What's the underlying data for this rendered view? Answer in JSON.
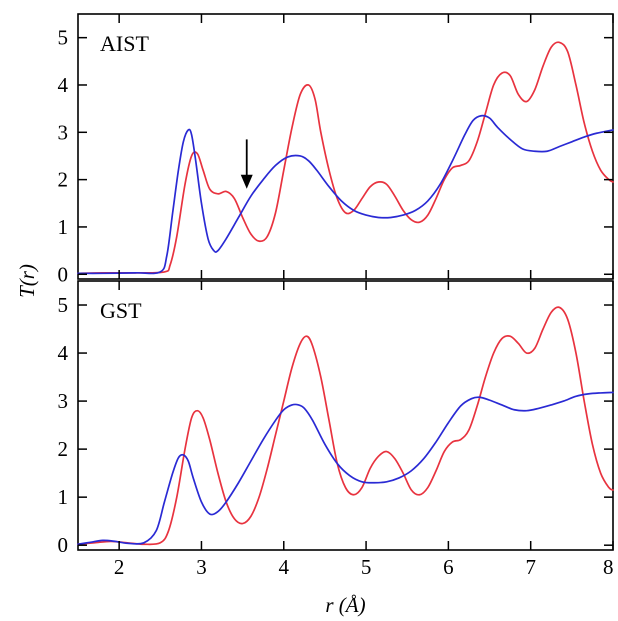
{
  "chart_data": [
    {
      "type": "line",
      "panel_label": "AIST",
      "xlabel": "",
      "ylabel": "T(r)",
      "xlim": [
        1.5,
        8
      ],
      "ylim": [
        -0.1,
        5.5
      ],
      "x_ticks": [
        2,
        3,
        4,
        5,
        6,
        7,
        8
      ],
      "y_ticks": [
        0,
        1,
        2,
        3,
        4,
        5
      ],
      "annotation": {
        "type": "arrow",
        "x": 3.55,
        "y_from": 2.85,
        "y_to": 1.85
      },
      "series": [
        {
          "color": "#e8333f",
          "x": [
            1.5,
            1.8,
            2.2,
            2.55,
            2.62,
            2.7,
            2.8,
            2.88,
            2.95,
            3.02,
            3.1,
            3.2,
            3.3,
            3.4,
            3.5,
            3.6,
            3.7,
            3.8,
            3.9,
            4.0,
            4.1,
            4.2,
            4.3,
            4.38,
            4.45,
            4.55,
            4.65,
            4.75,
            4.85,
            4.95,
            5.05,
            5.15,
            5.25,
            5.35,
            5.45,
            5.55,
            5.65,
            5.75,
            5.85,
            5.95,
            6.05,
            6.15,
            6.25,
            6.35,
            6.45,
            6.55,
            6.65,
            6.75,
            6.85,
            6.95,
            7.05,
            7.15,
            7.25,
            7.35,
            7.45,
            7.55,
            7.65,
            7.75,
            7.85,
            7.95,
            8.0
          ],
          "y": [
            0.02,
            0.03,
            0.03,
            0.05,
            0.2,
            0.8,
            1.9,
            2.5,
            2.55,
            2.2,
            1.8,
            1.7,
            1.75,
            1.6,
            1.2,
            0.85,
            0.7,
            0.8,
            1.3,
            2.2,
            3.1,
            3.8,
            4.0,
            3.7,
            3.0,
            2.2,
            1.6,
            1.3,
            1.35,
            1.6,
            1.85,
            1.95,
            1.9,
            1.65,
            1.35,
            1.15,
            1.1,
            1.25,
            1.6,
            2.0,
            2.25,
            2.3,
            2.4,
            2.8,
            3.4,
            4.0,
            4.25,
            4.2,
            3.8,
            3.65,
            3.9,
            4.4,
            4.8,
            4.9,
            4.7,
            4.0,
            3.2,
            2.6,
            2.2,
            2.0,
            1.95
          ]
        },
        {
          "color": "#2a2ad4",
          "x": [
            1.5,
            1.8,
            2.2,
            2.5,
            2.58,
            2.65,
            2.72,
            2.78,
            2.84,
            2.88,
            2.93,
            3.0,
            3.08,
            3.15,
            3.2,
            3.3,
            3.45,
            3.6,
            3.75,
            3.9,
            4.05,
            4.2,
            4.3,
            4.4,
            4.55,
            4.7,
            4.85,
            5.0,
            5.15,
            5.3,
            5.45,
            5.6,
            5.75,
            5.9,
            6.05,
            6.2,
            6.3,
            6.4,
            6.5,
            6.6,
            6.75,
            6.9,
            7.05,
            7.2,
            7.35,
            7.5,
            7.65,
            7.8,
            8.0
          ],
          "y": [
            0.02,
            0.02,
            0.03,
            0.05,
            0.4,
            1.3,
            2.2,
            2.8,
            3.05,
            2.95,
            2.4,
            1.5,
            0.75,
            0.5,
            0.5,
            0.75,
            1.2,
            1.65,
            2.0,
            2.3,
            2.48,
            2.5,
            2.4,
            2.2,
            1.85,
            1.55,
            1.35,
            1.25,
            1.2,
            1.2,
            1.25,
            1.35,
            1.55,
            1.9,
            2.4,
            2.95,
            3.25,
            3.35,
            3.3,
            3.1,
            2.85,
            2.65,
            2.6,
            2.6,
            2.7,
            2.8,
            2.9,
            2.98,
            3.05
          ]
        }
      ]
    },
    {
      "type": "line",
      "panel_label": "GST",
      "xlabel": "r (Å)",
      "ylabel": "",
      "xlim": [
        1.5,
        8
      ],
      "ylim": [
        -0.1,
        5.5
      ],
      "x_ticks": [
        2,
        3,
        4,
        5,
        6,
        7,
        8
      ],
      "y_ticks": [
        0,
        1,
        2,
        3,
        4,
        5
      ],
      "series": [
        {
          "color": "#e8333f",
          "x": [
            1.5,
            1.7,
            1.9,
            2.1,
            2.3,
            2.5,
            2.6,
            2.7,
            2.8,
            2.88,
            2.95,
            3.02,
            3.1,
            3.2,
            3.3,
            3.4,
            3.5,
            3.6,
            3.7,
            3.8,
            3.9,
            4.0,
            4.1,
            4.2,
            4.28,
            4.35,
            4.45,
            4.55,
            4.65,
            4.75,
            4.85,
            4.95,
            5.05,
            5.15,
            5.25,
            5.35,
            5.45,
            5.55,
            5.65,
            5.75,
            5.85,
            5.95,
            6.05,
            6.15,
            6.25,
            6.35,
            6.45,
            6.55,
            6.65,
            6.75,
            6.85,
            6.95,
            7.05,
            7.15,
            7.25,
            7.35,
            7.45,
            7.55,
            7.65,
            7.75,
            7.85,
            7.95,
            8.0
          ],
          "y": [
            0.02,
            0.05,
            0.08,
            0.05,
            0.02,
            0.05,
            0.3,
            1.0,
            2.0,
            2.65,
            2.8,
            2.65,
            2.2,
            1.5,
            0.9,
            0.55,
            0.45,
            0.6,
            1.0,
            1.6,
            2.3,
            3.0,
            3.7,
            4.2,
            4.35,
            4.15,
            3.5,
            2.6,
            1.7,
            1.2,
            1.05,
            1.2,
            1.6,
            1.85,
            1.95,
            1.8,
            1.5,
            1.15,
            1.05,
            1.2,
            1.55,
            1.95,
            2.15,
            2.2,
            2.4,
            2.9,
            3.5,
            4.0,
            4.3,
            4.35,
            4.2,
            4.0,
            4.1,
            4.5,
            4.85,
            4.95,
            4.7,
            4.0,
            3.0,
            2.1,
            1.5,
            1.2,
            1.15
          ]
        },
        {
          "color": "#2a2ad4",
          "x": [
            1.5,
            1.65,
            1.8,
            1.95,
            2.1,
            2.3,
            2.45,
            2.55,
            2.65,
            2.72,
            2.78,
            2.84,
            2.9,
            3.0,
            3.1,
            3.2,
            3.3,
            3.45,
            3.6,
            3.75,
            3.9,
            4.0,
            4.1,
            4.18,
            4.25,
            4.35,
            4.5,
            4.65,
            4.8,
            4.95,
            5.1,
            5.25,
            5.4,
            5.55,
            5.7,
            5.85,
            6.0,
            6.15,
            6.28,
            6.38,
            6.5,
            6.65,
            6.8,
            6.95,
            7.1,
            7.25,
            7.4,
            7.55,
            7.7,
            7.85,
            8.0
          ],
          "y": [
            0.02,
            0.06,
            0.1,
            0.08,
            0.04,
            0.05,
            0.3,
            0.9,
            1.5,
            1.82,
            1.88,
            1.75,
            1.4,
            0.9,
            0.65,
            0.7,
            0.9,
            1.3,
            1.75,
            2.2,
            2.6,
            2.82,
            2.92,
            2.92,
            2.85,
            2.6,
            2.1,
            1.7,
            1.45,
            1.32,
            1.3,
            1.32,
            1.4,
            1.55,
            1.8,
            2.15,
            2.55,
            2.9,
            3.05,
            3.08,
            3.02,
            2.92,
            2.82,
            2.8,
            2.85,
            2.92,
            3.0,
            3.1,
            3.15,
            3.17,
            3.18
          ]
        }
      ]
    }
  ]
}
